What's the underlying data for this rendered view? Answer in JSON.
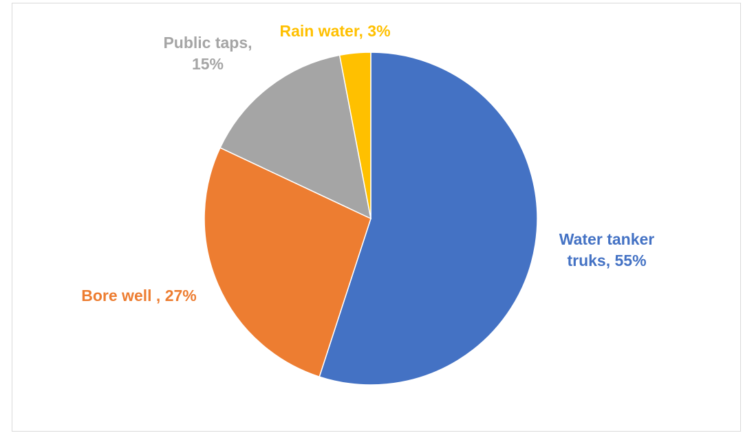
{
  "chart_data": {
    "type": "pie",
    "title": "",
    "start_angle_deg": 0,
    "direction": "clockwise",
    "legend": "none",
    "slices": [
      {
        "label": "Water tanker truks",
        "value": 55,
        "color": "#4472c4",
        "data_label_lines": [
          "Water tanker",
          "truks, 55%"
        ]
      },
      {
        "label": "Bore well",
        "value": 27,
        "color": "#ed7d31",
        "data_label_lines": [
          "Bore well , 27%"
        ]
      },
      {
        "label": "Public taps",
        "value": 15,
        "color": "#a5a5a5",
        "data_label_lines": [
          "Public taps,",
          "15%"
        ]
      },
      {
        "label": "Rain water",
        "value": 3,
        "color": "#ffc000",
        "data_label_lines": [
          "Rain water, 3%"
        ]
      }
    ]
  }
}
